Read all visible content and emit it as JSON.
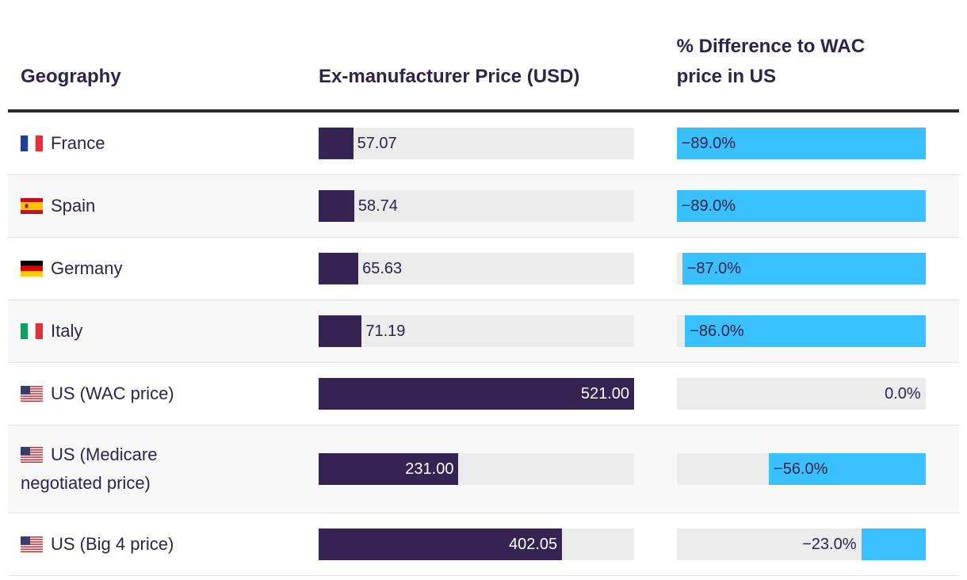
{
  "table": {
    "headers": [
      "Geography",
      "Ex-manufacturer Price (USD)",
      "% Difference to WAC price in US"
    ],
    "geography": [
      "France",
      "Spain",
      "Germany",
      "Italy",
      "US (WAC price)",
      "US (Medicare negotiated price)",
      "US (Big 4 price)"
    ],
    "price": {
      "values": [
        57.07,
        58.74,
        65.63,
        71.19,
        521,
        231,
        402.05
      ],
      "value_labels": [
        "57.07",
        "58.74",
        "65.63",
        "71.19",
        "521.00",
        "231.00",
        "402.05"
      ]
    },
    "difference": {
      "values": [
        -89,
        -89,
        -87,
        -86,
        0,
        -56,
        -23
      ],
      "value_labels": [
        "−89.0%",
        "−89.0%",
        "−87.0%",
        "−86.0%",
        "0.0%",
        "−56.0%",
        "−23.0%"
      ]
    },
    "colors": {
      "price": "#352452",
      "difference": "#38c0ff",
      "track": "#ebebeb"
    }
  }
}
